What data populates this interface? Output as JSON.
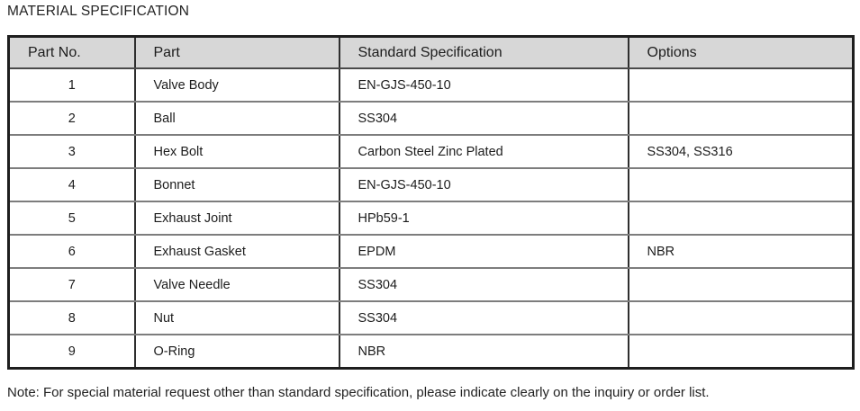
{
  "page": {
    "title": "MATERIAL SPECIFICATION",
    "note": "Note: For special material request other than standard specification, please indicate clearly on the inquiry or order list."
  },
  "table": {
    "headers": [
      "Part No.",
      "Part",
      "Standard Specification",
      "Options"
    ],
    "rows": [
      {
        "part_no": "1",
        "part": "Valve Body",
        "spec": "EN-GJS-450-10",
        "options": ""
      },
      {
        "part_no": "2",
        "part": "Ball",
        "spec": "SS304",
        "options": ""
      },
      {
        "part_no": "3",
        "part": "Hex Bolt",
        "spec": "Carbon Steel Zinc Plated",
        "options": "SS304, SS316"
      },
      {
        "part_no": "4",
        "part": "Bonnet",
        "spec": "EN-GJS-450-10",
        "options": ""
      },
      {
        "part_no": "5",
        "part": "Exhaust Joint",
        "spec": "HPb59-1",
        "options": ""
      },
      {
        "part_no": "6",
        "part": "Exhaust Gasket",
        "spec": "EPDM",
        "options": "NBR"
      },
      {
        "part_no": "7",
        "part": "Valve Needle",
        "spec": "SS304",
        "options": ""
      },
      {
        "part_no": "8",
        "part": "Nut",
        "spec": "SS304",
        "options": ""
      },
      {
        "part_no": "9",
        "part": "O-Ring",
        "spec": "NBR",
        "options": ""
      }
    ],
    "colors": {
      "header_bg": "#d7d7d7",
      "outer_border": "#1e1e1e",
      "vertical_divider": "#2e2e2e",
      "horizontal_divider": "#7d7d7d",
      "text": "#1c1c1c"
    }
  }
}
